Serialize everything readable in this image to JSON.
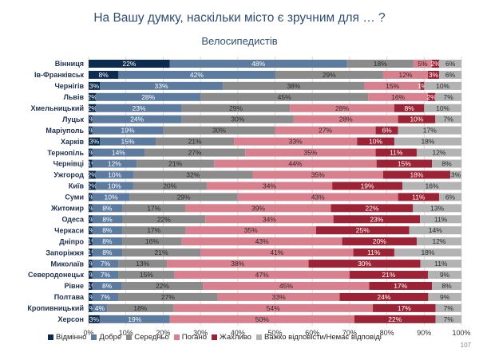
{
  "title": "На Вашу думку, наскільки місто є зручним для … ?",
  "subtitle": "Велосипедистів",
  "page_number": "107",
  "chart_data": {
    "type": "bar",
    "orientation": "horizontal",
    "stacked": true,
    "title": "На Вашу думку, наскільки місто є зручним для … ?",
    "subtitle": "Велосипедистів",
    "xlim": [
      0,
      100
    ],
    "x_ticks": [
      "0%",
      "10%",
      "20%",
      "30%",
      "40%",
      "50%",
      "60%",
      "70%",
      "80%",
      "90%",
      "100%"
    ],
    "grid": true,
    "legend_position": "bottom",
    "categories": [
      "Вінниця",
      "Ів-Франківськ",
      "Чернігів",
      "Львів",
      "Хмельницький",
      "Луцьк",
      "Маріуполь",
      "Харків",
      "Тернопіль",
      "Чернівці",
      "Ужгород",
      "Київ",
      "Суми",
      "Житомир",
      "Одеса",
      "Черкаси",
      "Дніпро",
      "Запоріжжя",
      "Миколаїв",
      "Северодонецьк",
      "Рівне",
      "Полтава",
      "Кропивницький",
      "Херсон"
    ],
    "series": [
      {
        "name": "Відмінно",
        "color": "#0d2b4e",
        "values": [
          22,
          8,
          3,
          2,
          2,
          1,
          1,
          3,
          1,
          1,
          2,
          2,
          1,
          1,
          1,
          1,
          1,
          1,
          1,
          1,
          1,
          1,
          1,
          3
        ],
        "labels": [
          "22%",
          "8%",
          "3%",
          "2%",
          "2%",
          "1%",
          "1%",
          "3%",
          "1%",
          "<1%",
          "2%",
          "2%",
          "1%",
          "1%",
          "1%",
          "1%",
          "<1%",
          "<1%",
          "1%",
          "1%",
          "<1%",
          "1%",
          "1%",
          "3%"
        ]
      },
      {
        "name": "Добре",
        "color": "#5d7b9f",
        "values": [
          48,
          42,
          33,
          28,
          23,
          24,
          19,
          15,
          14,
          12,
          10,
          10,
          10,
          8,
          8,
          8,
          8,
          8,
          7,
          7,
          8,
          7,
          4,
          19
        ],
        "labels": [
          "48%",
          "42%",
          "33%",
          "28%",
          "23%",
          "24%",
          "19%",
          "15%",
          "14%",
          "12%",
          "10%",
          "10%",
          "10%",
          "8%",
          "8%",
          "8%",
          "8%",
          "8%",
          "7%",
          "7%",
          "8%",
          "7%",
          "4%",
          "19%"
        ]
      },
      {
        "name": "Середньо",
        "color": "#8b8b8b",
        "values": [
          18,
          29,
          38,
          45,
          29,
          30,
          30,
          21,
          27,
          21,
          32,
          20,
          29,
          17,
          22,
          17,
          16,
          21,
          13,
          15,
          22,
          27,
          18,
          0
        ],
        "labels": [
          "18%",
          "29%",
          "38%",
          "45%",
          "29%",
          "30%",
          "30%",
          "21%",
          "27%",
          "21%",
          "32%",
          "20%",
          "29%",
          "17%",
          "22%",
          "17%",
          "16%",
          "21%",
          "13%",
          "15%",
          "22%",
          "27%",
          "18%",
          ""
        ]
      },
      {
        "name": "Погано",
        "color": "#d9808f",
        "values": [
          5,
          12,
          15,
          16,
          28,
          28,
          27,
          33,
          35,
          44,
          35,
          34,
          43,
          39,
          34,
          35,
          43,
          41,
          38,
          47,
          45,
          33,
          54,
          50
        ],
        "labels": [
          "5%",
          "12%",
          "15%",
          "16%",
          "28%",
          "28%",
          "27%",
          "33%",
          "35%",
          "44%",
          "35%",
          "34%",
          "43%",
          "39%",
          "34%",
          "35%",
          "43%",
          "41%",
          "38%",
          "47%",
          "45%",
          "33%",
          "54%",
          "50%"
        ]
      },
      {
        "name": "Жахливо",
        "color": "#9b2335",
        "values": [
          2,
          3,
          1,
          2,
          8,
          10,
          6,
          10,
          11,
          15,
          18,
          19,
          11,
          22,
          23,
          25,
          20,
          11,
          30,
          21,
          17,
          24,
          17,
          22
        ],
        "labels": [
          "2%",
          "3%",
          "1%",
          "2%",
          "8%",
          "10%",
          "6%",
          "10%",
          "11%",
          "15%",
          "18%",
          "19%",
          "11%",
          "22%",
          "23%",
          "25%",
          "20%",
          "11%",
          "30%",
          "21%",
          "17%",
          "24%",
          "17%",
          "22%"
        ]
      },
      {
        "name": "Важко відповісти/Немає відповіді",
        "color": "#b3b3b3",
        "values": [
          6,
          6,
          10,
          7,
          10,
          7,
          17,
          18,
          12,
          8,
          3,
          16,
          6,
          13,
          11,
          14,
          12,
          18,
          11,
          9,
          8,
          9,
          7,
          7
        ],
        "labels": [
          "6%",
          "6%",
          "10%",
          "7%",
          "10%",
          "7%",
          "17%",
          "18%",
          "12%",
          "8%",
          "3%",
          "16%",
          "6%",
          "13%",
          "11%",
          "14%",
          "12%",
          "18%",
          "11%",
          "9%",
          "8%",
          "9%",
          "7%",
          "7%"
        ]
      }
    ]
  }
}
